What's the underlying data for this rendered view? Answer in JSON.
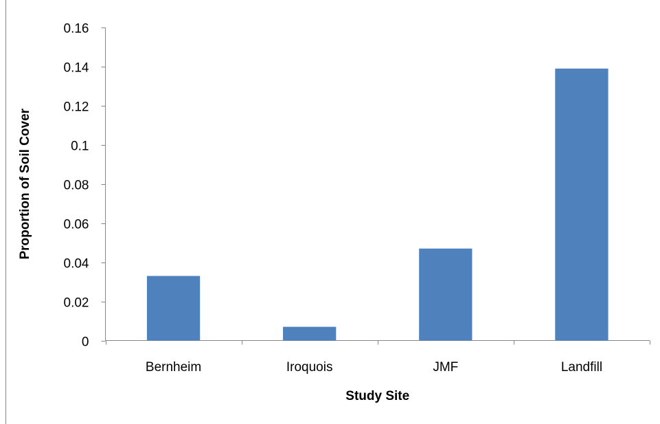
{
  "chart_data": {
    "type": "bar",
    "title": "",
    "xlabel": "Study Site",
    "ylabel": "Proportion of Soil Cover",
    "categories": [
      "Bernheim",
      "Iroquois",
      "JMF",
      "Landfill"
    ],
    "values": [
      0.033,
      0.007,
      0.047,
      0.139
    ],
    "ylim": [
      0,
      0.16
    ],
    "yticks": [
      0,
      0.02,
      0.04,
      0.06,
      0.08,
      0.1,
      0.12,
      0.14,
      0.16
    ],
    "ytick_labels": [
      "0",
      "0.02",
      "0.04",
      "0.06",
      "0.08",
      "0.1",
      "0.12",
      "0.14",
      "0.16"
    ],
    "grid": false,
    "legend": "none",
    "bar_color": "#4F81BD",
    "axis_color": "#868686"
  }
}
